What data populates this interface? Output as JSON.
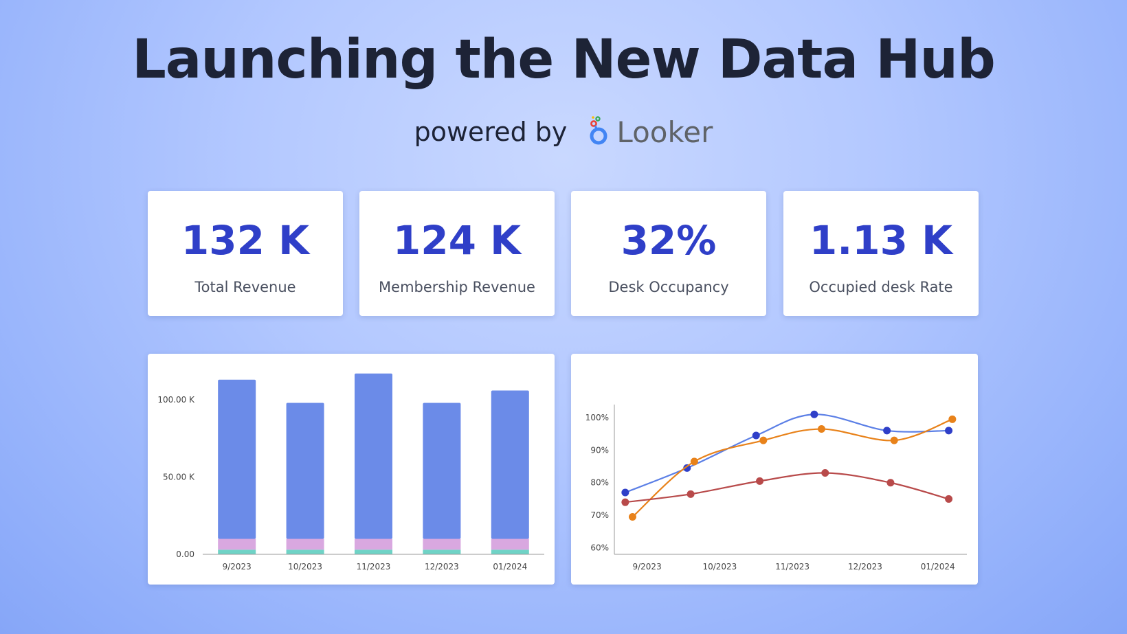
{
  "header": {
    "title": "Launching the New Data Hub",
    "powered_by": "powered by",
    "brand": "Looker"
  },
  "kpis": [
    {
      "value": "132 K",
      "label": "Total Revenue"
    },
    {
      "value": "124 K",
      "label": "Membership Revenue"
    },
    {
      "value": "32%",
      "label": "Desk Occupancy"
    },
    {
      "value": "1.13 K",
      "label": "Occupied desk Rate"
    }
  ],
  "colors": {
    "accent": "#2f3fc8",
    "bar_main": "#6b8be8",
    "bar_pink": "#d9a8e0",
    "bar_teal": "#6fd3c6",
    "line_blue": "#5b7fe6",
    "line_orange": "#e8821a",
    "line_red": "#b84a4a"
  },
  "chart_data": [
    {
      "type": "bar",
      "stacked": true,
      "categories": [
        "9/2023",
        "10/2023",
        "11/2023",
        "12/2023",
        "01/2024"
      ],
      "series": [
        {
          "values": [
            3,
            3,
            3,
            3,
            3
          ],
          "color": "#6fd3c6"
        },
        {
          "values": [
            7,
            7,
            7,
            7,
            7
          ],
          "color": "#d9a8e0"
        },
        {
          "values": [
            103,
            88,
            107,
            88,
            96
          ],
          "color": "#6b8be8"
        }
      ],
      "ylim": [
        0,
        112
      ],
      "yticks": [
        0,
        50,
        100
      ],
      "ytick_labels": [
        "0.00",
        "50.00 K",
        "100.00 K"
      ],
      "grid": false
    },
    {
      "type": "line",
      "categories": [
        "9/2023",
        "10/2023",
        "11/2023",
        "12/2023",
        "01/2024"
      ],
      "x_range": [
        -0.45,
        4.4
      ],
      "series": [
        {
          "color": "#5b7fe6",
          "marker_color": "#2f3fc8",
          "points": [
            [
              -0.3,
              77
            ],
            [
              0.55,
              84.5
            ],
            [
              1.5,
              94.5
            ],
            [
              2.3,
              101
            ],
            [
              3.3,
              96
            ],
            [
              4.15,
              96
            ]
          ]
        },
        {
          "color": "#e8821a",
          "marker_color": "#e8821a",
          "points": [
            [
              -0.2,
              69.5
            ],
            [
              0.65,
              86.5
            ],
            [
              1.6,
              93
            ],
            [
              2.4,
              96.5
            ],
            [
              3.4,
              93
            ],
            [
              4.2,
              99.5
            ]
          ]
        },
        {
          "color": "#b84a4a",
          "marker_color": "#b84a4a",
          "points": [
            [
              -0.3,
              74
            ],
            [
              0.6,
              76.5
            ],
            [
              1.55,
              80.5
            ],
            [
              2.45,
              83
            ],
            [
              3.35,
              80
            ],
            [
              4.15,
              75
            ]
          ]
        }
      ],
      "ylim": [
        58,
        104
      ],
      "yticks": [
        60,
        70,
        80,
        90,
        100
      ],
      "ytick_labels": [
        "60%",
        "70%",
        "80%",
        "90%",
        "100%"
      ],
      "grid": false
    }
  ]
}
